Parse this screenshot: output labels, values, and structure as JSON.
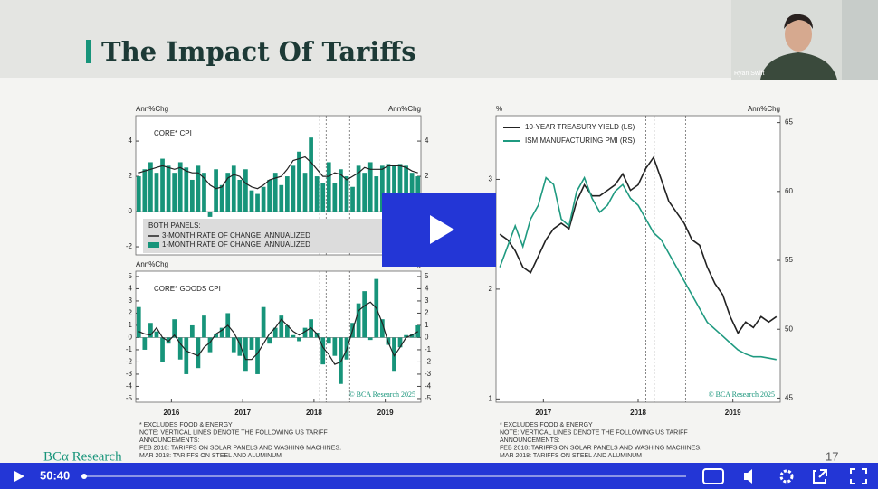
{
  "webcam": {
    "name": "Ryan Swift"
  },
  "slide": {
    "title": "The Impact Of Tariffs",
    "logo": "BCα Research",
    "page": "17",
    "charts": [
      {
        "type": "bar",
        "title": "CORE* CPI",
        "y_label": "Ann%Chg",
        "y2_label": "Ann%Chg",
        "legend_heading": "BOTH PANELS:",
        "xlim": [
          2015.5,
          2019.5
        ],
        "ylim": [
          -2.46,
          5.44
        ],
        "yticks": [
          -2,
          0,
          2,
          4
        ],
        "series": [
          {
            "name": "3-MONTH RATE OF CHANGE, ANNUALIZED",
            "color": "#222222",
            "kind": "line",
            "values": [
              2.2,
              2.3,
              2.4,
              2.5,
              2.6,
              2.5,
              2.4,
              2.5,
              2.3,
              2.2,
              2.2,
              1.9,
              1.5,
              1.3,
              1.4,
              1.9,
              2.1,
              2.0,
              1.6,
              1.4,
              1.3,
              1.5,
              1.8,
              1.9,
              2.0,
              2.4,
              2.9,
              3.0,
              3.1,
              2.8,
              2.4,
              2.0,
              2.0,
              2.2,
              2.1,
              1.8,
              2.0,
              2.2,
              2.5,
              2.4,
              2.4,
              2.4,
              2.6,
              2.6,
              2.6,
              2.5,
              2.3,
              2.2
            ]
          },
          {
            "name": "1-MONTH RATE OF CHANGE, ANNUALIZED",
            "color": "#17947a",
            "kind": "bar",
            "values": [
              2.0,
              2.4,
              2.8,
              2.2,
              3.0,
              2.6,
              2.2,
              2.8,
              2.5,
              1.8,
              2.6,
              2.2,
              -0.3,
              2.4,
              1.5,
              2.2,
              2.6,
              1.8,
              2.4,
              1.2,
              1.0,
              1.4,
              1.8,
              2.2,
              1.5,
              2.0,
              2.6,
              3.4,
              2.2,
              4.2,
              2.0,
              1.6,
              2.8,
              1.6,
              2.4,
              2.0,
              1.4,
              2.6,
              2.2,
              2.8,
              2.0,
              2.6,
              2.7,
              2.6,
              2.7,
              2.6,
              2.2,
              2.0
            ]
          }
        ]
      },
      {
        "type": "bar",
        "title": "CORE* GOODS CPI",
        "y_label": "Ann%Chg",
        "y2_label": "Ann%Chg",
        "copyright": "© BCA Research 2025",
        "xlim": [
          2015.5,
          2019.5
        ],
        "xticks": [
          2016,
          2017,
          2018,
          2019
        ],
        "ylim": [
          -5.3,
          5.44
        ],
        "yticks": [
          -5,
          -4,
          -3,
          -2,
          -1,
          0,
          1,
          2,
          3,
          4,
          5
        ],
        "series": [
          {
            "color": "#222222",
            "kind": "line",
            "values": [
              0.5,
              0.3,
              0.2,
              0.8,
              0,
              -0.3,
              0.2,
              -0.5,
              -1.1,
              -1.3,
              -1.5,
              -0.8,
              -0.4,
              0.3,
              0.6,
              1.0,
              0.4,
              -0.5,
              -1.8,
              -1.8,
              -1.3,
              -0.5,
              0.3,
              0.8,
              1.5,
              1.0,
              0.5,
              0.2,
              0.5,
              0.8,
              0.3,
              -0.8,
              -1.4,
              -2.2,
              -2.0,
              -1.0,
              0.6,
              2.2,
              2.6,
              2.9,
              2.4,
              1.2,
              -0.4,
              -1.5,
              -0.8,
              0,
              0.2,
              0.5
            ]
          },
          {
            "color": "#17947a",
            "kind": "bar",
            "values": [
              2.5,
              -1,
              1.2,
              0.5,
              -2,
              -0.5,
              1.5,
              -1.8,
              -3,
              1,
              -2.5,
              1.8,
              -1.2,
              0.3,
              0.8,
              2,
              -1.2,
              -1.5,
              -2.8,
              -1,
              -3,
              2.5,
              -0.5,
              0.8,
              1.8,
              1,
              0.2,
              -0.3,
              0.8,
              1.5,
              0.4,
              -2.2,
              -0.5,
              -1.5,
              -3.8,
              -1.8,
              1.2,
              2.8,
              3.8,
              -0.2,
              4.8,
              1.5,
              -0.6,
              -2.8,
              -0.8,
              0.2,
              0.3,
              1.0
            ]
          }
        ]
      },
      {
        "type": "line",
        "y_label": "%",
        "y2_label": "Ann%Chg",
        "copyright": "© BCA Research 2025",
        "xlim": [
          2016.5,
          2019.5
        ],
        "xticks": [
          2017,
          2018,
          2019
        ],
        "ylim": [
          0.97,
          3.58
        ],
        "yticks": [
          1,
          2,
          3
        ],
        "y2lim": [
          44.7,
          65.5
        ],
        "y2ticks": [
          45,
          50,
          55,
          60,
          65
        ],
        "series": [
          {
            "name": "10-YEAR TREASURY YIELD (LS)",
            "color": "#222222",
            "values": [
              2.5,
              2.45,
              2.35,
              2.2,
              2.15,
              2.3,
              2.45,
              2.55,
              2.6,
              2.55,
              2.8,
              2.95,
              2.85,
              2.85,
              2.9,
              2.95,
              3.05,
              2.9,
              2.95,
              3.1,
              3.2,
              3.0,
              2.8,
              2.7,
              2.6,
              2.45,
              2.4,
              2.2,
              2.05,
              1.95,
              1.75,
              1.6,
              1.7,
              1.65,
              1.75,
              1.7,
              1.75
            ]
          },
          {
            "name": "ISM MANUFACTURING PMI (RS)",
            "color": "#1f9a80",
            "axis": "y2",
            "values": [
              54.5,
              56,
              57.5,
              56,
              58,
              59,
              61,
              60.5,
              58,
              57.5,
              60,
              61,
              59.5,
              58.5,
              59,
              60,
              60.5,
              59.5,
              59,
              58,
              57,
              56.5,
              55.5,
              54.5,
              53.5,
              52.5,
              51.5,
              50.5,
              50,
              49.5,
              49,
              48.5,
              48.2,
              48,
              48,
              47.9,
              47.8
            ]
          }
        ]
      }
    ],
    "notes": [
      [
        "* EXCLUDES FOOD & ENERGY",
        "NOTE: VERTICAL LINES DENOTE THE FOLLOWING US TARIFF",
        "ANNOUNCEMENTS:",
        "FEB 2018: TARIFFS ON SOLAR PANELS AND WASHING MACHINES.",
        "MAR 2018: TARIFFS ON STEEL AND ALUMINUM"
      ],
      [
        "* EXCLUDES FOOD & ENERGY",
        "NOTE: VERTICAL LINES DENOTE THE FOLLOWING US TARIFF",
        "ANNOUNCEMENTS:",
        "FEB 2018: TARIFFS ON SOLAR PANELS AND WASHING MACHINES.",
        "MAR 2018: TARIFFS ON STEEL AND ALUMINUM"
      ]
    ]
  },
  "player": {
    "time": "50:40"
  }
}
